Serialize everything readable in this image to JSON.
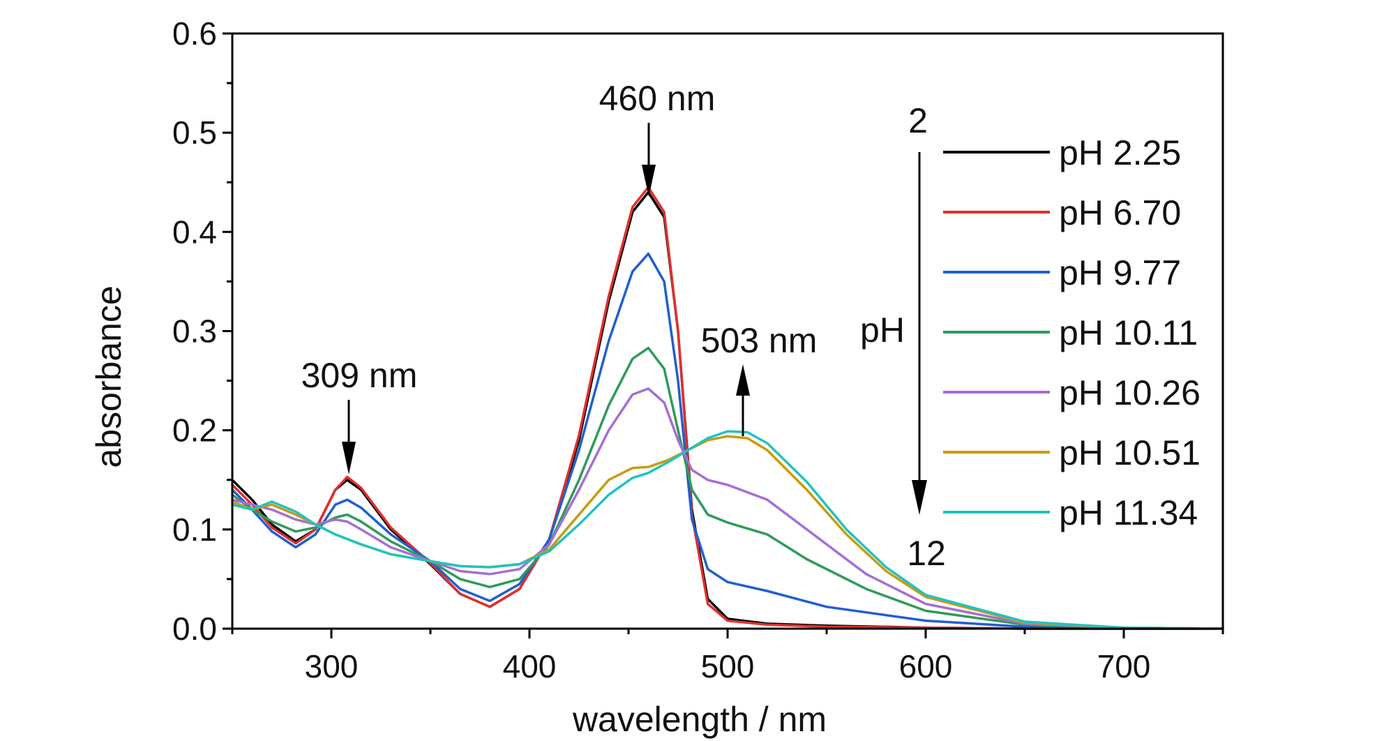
{
  "chart_data": {
    "type": "line",
    "xlabel": "wavelength / nm",
    "ylabel": "absorbance",
    "xlim": [
      250,
      750
    ],
    "ylim": [
      0,
      0.6
    ],
    "x_ticks": [
      300,
      400,
      500,
      600,
      700
    ],
    "y_ticks": [
      0.0,
      0.1,
      0.2,
      0.3,
      0.4,
      0.5,
      0.6
    ],
    "y_tick_labels": [
      "0.0",
      "0.1",
      "0.2",
      "0.3",
      "0.4",
      "0.5",
      "0.6"
    ],
    "grid": false,
    "legend_position": "right",
    "series": [
      {
        "name": "pH 2.25",
        "color": "#000000",
        "points": [
          [
            250,
            0.15
          ],
          [
            260,
            0.13
          ],
          [
            270,
            0.105
          ],
          [
            282,
            0.088
          ],
          [
            292,
            0.1
          ],
          [
            302,
            0.14
          ],
          [
            308,
            0.15
          ],
          [
            315,
            0.14
          ],
          [
            330,
            0.1
          ],
          [
            350,
            0.065
          ],
          [
            365,
            0.035
          ],
          [
            380,
            0.022
          ],
          [
            395,
            0.04
          ],
          [
            410,
            0.09
          ],
          [
            425,
            0.19
          ],
          [
            440,
            0.33
          ],
          [
            452,
            0.42
          ],
          [
            460,
            0.44
          ],
          [
            468,
            0.415
          ],
          [
            475,
            0.3
          ],
          [
            482,
            0.12
          ],
          [
            490,
            0.03
          ],
          [
            500,
            0.01
          ],
          [
            520,
            0.005
          ],
          [
            550,
            0.003
          ],
          [
            600,
            0.001
          ],
          [
            650,
            0.0
          ],
          [
            700,
            0.0
          ],
          [
            750,
            0.0
          ]
        ]
      },
      {
        "name": "pH 6.70",
        "color": "#e0302e",
        "points": [
          [
            250,
            0.145
          ],
          [
            260,
            0.125
          ],
          [
            270,
            0.102
          ],
          [
            282,
            0.086
          ],
          [
            292,
            0.1
          ],
          [
            302,
            0.14
          ],
          [
            308,
            0.153
          ],
          [
            315,
            0.142
          ],
          [
            330,
            0.102
          ],
          [
            350,
            0.066
          ],
          [
            365,
            0.035
          ],
          [
            380,
            0.022
          ],
          [
            395,
            0.04
          ],
          [
            410,
            0.09
          ],
          [
            425,
            0.195
          ],
          [
            440,
            0.335
          ],
          [
            452,
            0.425
          ],
          [
            460,
            0.445
          ],
          [
            468,
            0.42
          ],
          [
            475,
            0.3
          ],
          [
            482,
            0.115
          ],
          [
            490,
            0.025
          ],
          [
            500,
            0.008
          ],
          [
            520,
            0.004
          ],
          [
            550,
            0.002
          ],
          [
            600,
            0.001
          ],
          [
            650,
            0.0
          ],
          [
            700,
            0.0
          ],
          [
            750,
            0.0
          ]
        ]
      },
      {
        "name": "pH 9.77",
        "color": "#1f5fcf",
        "points": [
          [
            250,
            0.14
          ],
          [
            260,
            0.12
          ],
          [
            270,
            0.098
          ],
          [
            282,
            0.082
          ],
          [
            292,
            0.095
          ],
          [
            302,
            0.125
          ],
          [
            308,
            0.13
          ],
          [
            315,
            0.122
          ],
          [
            330,
            0.095
          ],
          [
            350,
            0.068
          ],
          [
            365,
            0.04
          ],
          [
            380,
            0.028
          ],
          [
            395,
            0.045
          ],
          [
            410,
            0.09
          ],
          [
            425,
            0.18
          ],
          [
            440,
            0.29
          ],
          [
            452,
            0.36
          ],
          [
            460,
            0.378
          ],
          [
            468,
            0.35
          ],
          [
            475,
            0.25
          ],
          [
            482,
            0.11
          ],
          [
            490,
            0.06
          ],
          [
            500,
            0.047
          ],
          [
            520,
            0.038
          ],
          [
            550,
            0.022
          ],
          [
            600,
            0.008
          ],
          [
            650,
            0.002
          ],
          [
            700,
            0.0
          ],
          [
            750,
            0.0
          ]
        ]
      },
      {
        "name": "pH 10.11",
        "color": "#2e9a5a",
        "points": [
          [
            250,
            0.135
          ],
          [
            260,
            0.12
          ],
          [
            270,
            0.108
          ],
          [
            282,
            0.098
          ],
          [
            292,
            0.102
          ],
          [
            302,
            0.112
          ],
          [
            308,
            0.115
          ],
          [
            315,
            0.108
          ],
          [
            330,
            0.088
          ],
          [
            350,
            0.068
          ],
          [
            365,
            0.05
          ],
          [
            380,
            0.042
          ],
          [
            395,
            0.05
          ],
          [
            410,
            0.085
          ],
          [
            425,
            0.15
          ],
          [
            440,
            0.225
          ],
          [
            452,
            0.272
          ],
          [
            460,
            0.283
          ],
          [
            468,
            0.262
          ],
          [
            475,
            0.2
          ],
          [
            482,
            0.14
          ],
          [
            490,
            0.115
          ],
          [
            500,
            0.107
          ],
          [
            520,
            0.095
          ],
          [
            540,
            0.07
          ],
          [
            570,
            0.04
          ],
          [
            600,
            0.018
          ],
          [
            650,
            0.004
          ],
          [
            700,
            0.001
          ],
          [
            750,
            0.0
          ]
        ]
      },
      {
        "name": "pH 10.26",
        "color": "#a56ed6",
        "points": [
          [
            250,
            0.13
          ],
          [
            260,
            0.125
          ],
          [
            270,
            0.12
          ],
          [
            282,
            0.11
          ],
          [
            292,
            0.105
          ],
          [
            302,
            0.11
          ],
          [
            308,
            0.108
          ],
          [
            315,
            0.1
          ],
          [
            330,
            0.082
          ],
          [
            350,
            0.068
          ],
          [
            365,
            0.058
          ],
          [
            380,
            0.055
          ],
          [
            395,
            0.06
          ],
          [
            410,
            0.085
          ],
          [
            425,
            0.14
          ],
          [
            440,
            0.2
          ],
          [
            452,
            0.236
          ],
          [
            460,
            0.242
          ],
          [
            468,
            0.228
          ],
          [
            475,
            0.19
          ],
          [
            482,
            0.16
          ],
          [
            490,
            0.15
          ],
          [
            500,
            0.145
          ],
          [
            520,
            0.13
          ],
          [
            540,
            0.1
          ],
          [
            570,
            0.055
          ],
          [
            600,
            0.025
          ],
          [
            650,
            0.005
          ],
          [
            700,
            0.001
          ],
          [
            750,
            0.0
          ]
        ]
      },
      {
        "name": "pH 10.51",
        "color": "#c99a10",
        "points": [
          [
            250,
            0.128
          ],
          [
            260,
            0.12
          ],
          [
            270,
            0.125
          ],
          [
            282,
            0.115
          ],
          [
            292,
            0.105
          ],
          [
            302,
            0.095
          ],
          [
            315,
            0.085
          ],
          [
            330,
            0.075
          ],
          [
            350,
            0.068
          ],
          [
            365,
            0.063
          ],
          [
            380,
            0.062
          ],
          [
            395,
            0.065
          ],
          [
            410,
            0.08
          ],
          [
            425,
            0.115
          ],
          [
            440,
            0.15
          ],
          [
            452,
            0.162
          ],
          [
            460,
            0.163
          ],
          [
            470,
            0.17
          ],
          [
            480,
            0.18
          ],
          [
            490,
            0.19
          ],
          [
            500,
            0.194
          ],
          [
            510,
            0.192
          ],
          [
            520,
            0.18
          ],
          [
            540,
            0.14
          ],
          [
            560,
            0.095
          ],
          [
            580,
            0.058
          ],
          [
            600,
            0.032
          ],
          [
            650,
            0.006
          ],
          [
            700,
            0.001
          ],
          [
            750,
            0.0
          ]
        ]
      },
      {
        "name": "pH 11.34",
        "color": "#1fc3c0",
        "points": [
          [
            250,
            0.125
          ],
          [
            260,
            0.12
          ],
          [
            270,
            0.128
          ],
          [
            282,
            0.118
          ],
          [
            292,
            0.105
          ],
          [
            302,
            0.095
          ],
          [
            315,
            0.085
          ],
          [
            330,
            0.075
          ],
          [
            350,
            0.068
          ],
          [
            365,
            0.063
          ],
          [
            380,
            0.062
          ],
          [
            395,
            0.065
          ],
          [
            410,
            0.078
          ],
          [
            425,
            0.105
          ],
          [
            440,
            0.135
          ],
          [
            452,
            0.152
          ],
          [
            460,
            0.157
          ],
          [
            470,
            0.168
          ],
          [
            480,
            0.18
          ],
          [
            490,
            0.192
          ],
          [
            500,
            0.199
          ],
          [
            510,
            0.198
          ],
          [
            520,
            0.187
          ],
          [
            540,
            0.148
          ],
          [
            560,
            0.1
          ],
          [
            580,
            0.062
          ],
          [
            600,
            0.034
          ],
          [
            650,
            0.007
          ],
          [
            700,
            0.001
          ],
          [
            750,
            0.0
          ]
        ]
      }
    ],
    "annotations": [
      {
        "text": "460 nm",
        "x": 460,
        "arrow": "down"
      },
      {
        "text": "309 nm",
        "x": 309,
        "arrow": "down"
      },
      {
        "text": "503 nm",
        "x": 503,
        "arrow": "up"
      }
    ],
    "ph_indicator": {
      "label": "pH",
      "start": "2",
      "end": "12"
    }
  }
}
